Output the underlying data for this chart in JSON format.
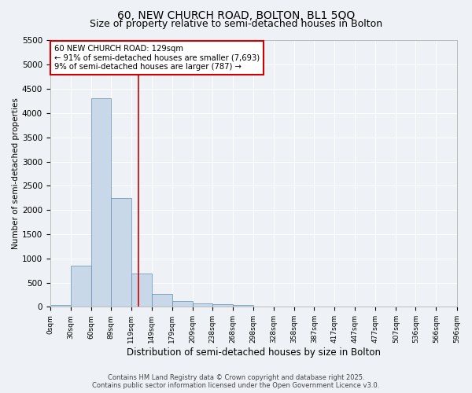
{
  "title_line1": "60, NEW CHURCH ROAD, BOLTON, BL1 5QQ",
  "title_line2": "Size of property relative to semi-detached houses in Bolton",
  "annotation_title": "60 NEW CHURCH ROAD: 129sqm",
  "annotation_line1": "← 91% of semi-detached houses are smaller (7,693)",
  "annotation_line2": "9% of semi-detached houses are larger (787) →",
  "xlabel": "Distribution of semi-detached houses by size in Bolton",
  "ylabel": "Number of semi-detached properties",
  "footer_line1": "Contains HM Land Registry data © Crown copyright and database right 2025.",
  "footer_line2": "Contains public sector information licensed under the Open Government Licence v3.0.",
  "bin_edges": [
    0,
    30,
    60,
    89,
    119,
    149,
    179,
    209,
    238,
    268,
    298,
    328,
    358,
    387,
    417,
    447,
    477,
    507,
    536,
    566,
    596
  ],
  "bin_labels": [
    "0sqm",
    "30sqm",
    "60sqm",
    "89sqm",
    "119sqm",
    "149sqm",
    "179sqm",
    "209sqm",
    "238sqm",
    "268sqm",
    "298sqm",
    "328sqm",
    "358sqm",
    "387sqm",
    "417sqm",
    "447sqm",
    "477sqm",
    "507sqm",
    "536sqm",
    "566sqm",
    "596sqm"
  ],
  "bar_values": [
    30,
    850,
    4300,
    2250,
    680,
    260,
    120,
    65,
    55,
    40,
    0,
    0,
    0,
    0,
    0,
    0,
    0,
    0,
    0,
    0
  ],
  "bar_color": "#c8d8e8",
  "bar_edge_color": "#6090b0",
  "property_size": 129,
  "vline_color": "#cc0000",
  "ylim": [
    0,
    5500
  ],
  "yticks": [
    0,
    500,
    1000,
    1500,
    2000,
    2500,
    3000,
    3500,
    4000,
    4500,
    5000,
    5500
  ],
  "bg_color": "#eef2f6",
  "grid_color": "#ffffff",
  "annotation_box_color": "#cc0000",
  "title_fontsize": 10,
  "subtitle_fontsize": 9
}
